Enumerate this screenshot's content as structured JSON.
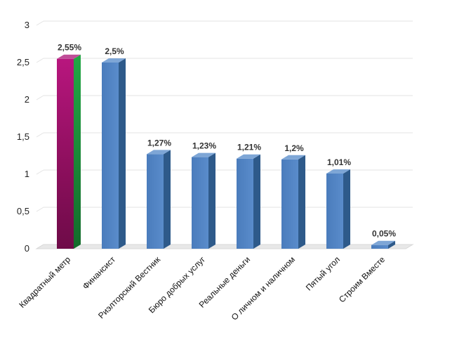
{
  "chart_data": {
    "type": "bar",
    "categories": [
      "Квадратный метр",
      "Финансист",
      "Риэлторский Вестник",
      "Бюро добрых услуг",
      "Реальные деньги",
      "О личном и наличном",
      "Пятый угол",
      "Строим Вместе"
    ],
    "values": [
      2.55,
      2.5,
      1.27,
      1.23,
      1.21,
      1.2,
      1.01,
      0.05
    ],
    "data_labels": [
      "2,55%",
      "2,5%",
      "1,27%",
      "1,23%",
      "1,21%",
      "1,2%",
      "1,01%",
      "0,05%"
    ],
    "y_ticks": [
      "0",
      "0,5",
      "1",
      "1,5",
      "2",
      "2,5",
      "3"
    ],
    "ylim": [
      0,
      3
    ],
    "grid": true,
    "legend": "none",
    "colors": {
      "bar": "#4f81bd",
      "bar_side": "#2e5a8a",
      "bar_top": "#7ea6d6",
      "highlight_front": "#9e1a6e",
      "highlight_side": "#1e8c3a",
      "highlight_top": "#c04d98",
      "grid": "#e3e3e3",
      "floor": "#e8e8e8"
    },
    "highlight_index": 0
  }
}
